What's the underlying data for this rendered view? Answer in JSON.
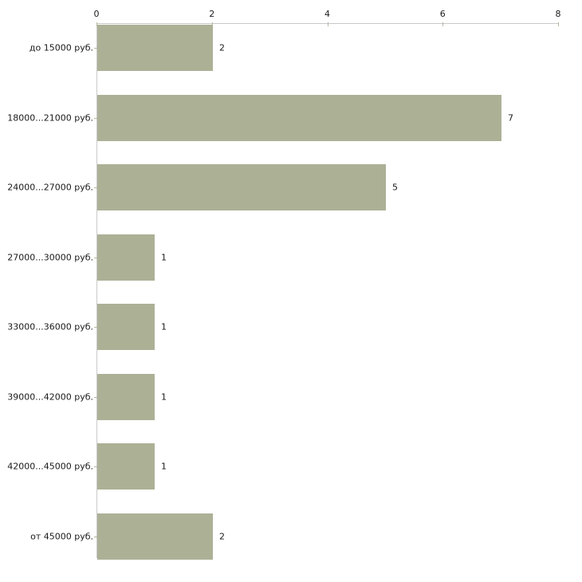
{
  "chart_data": {
    "type": "bar",
    "orientation": "horizontal",
    "title": "",
    "xlabel": "",
    "ylabel": "",
    "categories": [
      "до 15000 руб.",
      "18000...21000 руб.",
      "24000...27000 руб.",
      "27000...30000 руб.",
      "33000...36000 руб.",
      "39000...42000 руб.",
      "42000...45000 руб.",
      "от 45000 руб."
    ],
    "values": [
      2,
      7,
      5,
      1,
      1,
      1,
      1,
      2
    ],
    "value_labels": [
      "2",
      "7",
      "5",
      "1",
      "1",
      "1",
      "1",
      "2"
    ],
    "xlim": [
      0,
      8
    ],
    "xticks": [
      "0",
      "2",
      "4",
      "6",
      "8"
    ],
    "xtick_values": [
      0,
      2,
      4,
      6,
      8
    ],
    "axis_position": "top",
    "grid": "off",
    "legend": "none",
    "colors": {
      "bar_fill": "#acb196",
      "axis_line": "#c9c9c9",
      "tick_mark": "#b3b79c",
      "text": "#1a1a1a",
      "background": "#ffffff"
    }
  }
}
